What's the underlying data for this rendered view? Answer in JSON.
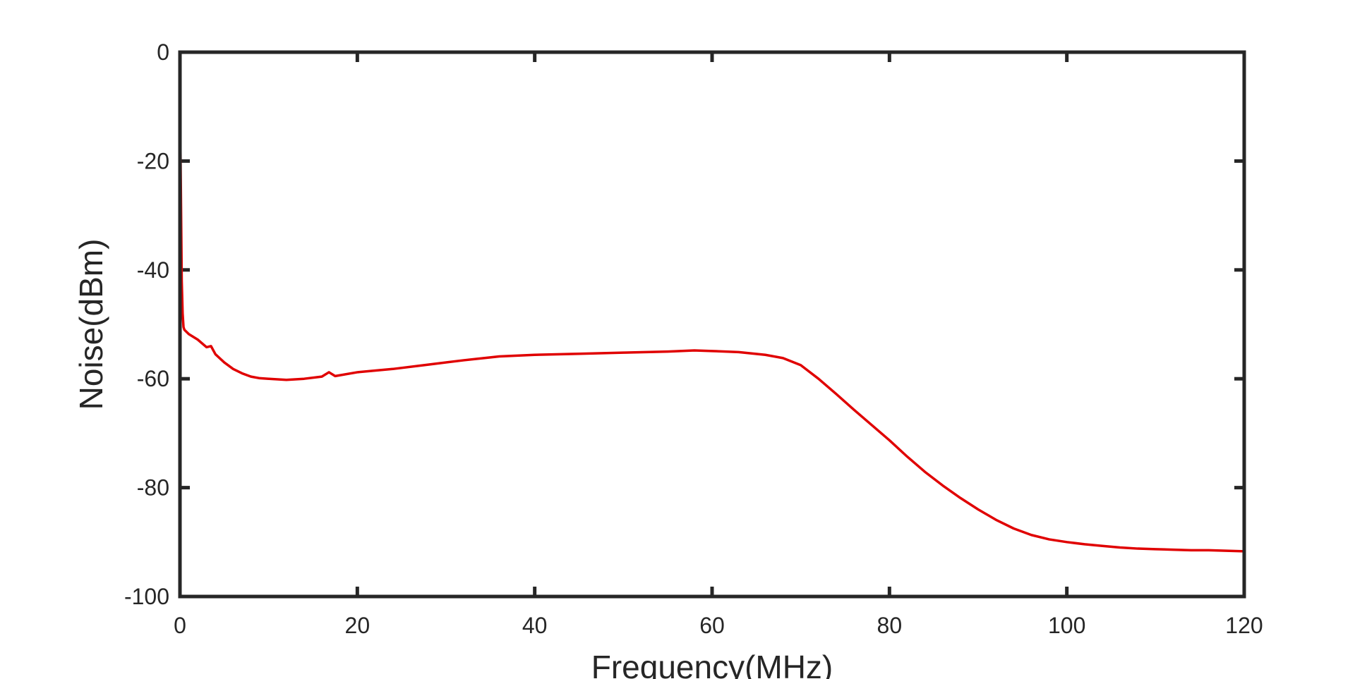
{
  "chart_data": {
    "type": "line",
    "xlabel": "Frequency(MHz)",
    "ylabel": "Noise(dBm)",
    "xlim": [
      0,
      120
    ],
    "ylim": [
      -100,
      0
    ],
    "xticks": [
      0,
      20,
      40,
      60,
      80,
      100,
      120
    ],
    "yticks": [
      0,
      -20,
      -40,
      -60,
      -80,
      -100
    ],
    "grid": false,
    "legend": "none",
    "series": [
      {
        "color": "#e00000",
        "x": [
          0,
          0.1,
          0.2,
          0.3,
          0.4,
          0.5,
          1,
          2,
          3,
          3.5,
          4,
          5,
          6,
          7,
          8,
          9,
          10,
          12,
          14,
          16,
          16.8,
          17.5,
          20,
          24,
          28,
          32,
          36,
          40,
          45,
          50,
          55,
          58,
          60,
          63,
          66,
          68,
          70,
          72,
          74,
          76,
          78,
          80,
          82,
          84,
          86,
          88,
          90,
          92,
          94,
          96,
          98,
          100,
          102,
          104,
          106,
          108,
          110,
          112,
          114,
          116,
          118,
          120
        ],
        "y": [
          -8,
          -25,
          -42,
          -48,
          -50.5,
          -51,
          -51.8,
          -52.8,
          -54.2,
          -54,
          -55.5,
          -57,
          -58.2,
          -59,
          -59.6,
          -59.9,
          -60,
          -60.2,
          -60,
          -59.6,
          -58.8,
          -59.5,
          -58.8,
          -58.2,
          -57.4,
          -56.6,
          -55.9,
          -55.6,
          -55.4,
          -55.2,
          -55,
          -54.8,
          -54.9,
          -55.1,
          -55.6,
          -56.2,
          -57.5,
          -60,
          -62.8,
          -65.7,
          -68.5,
          -71.3,
          -74.3,
          -77.1,
          -79.6,
          -81.9,
          -84,
          -85.9,
          -87.5,
          -88.7,
          -89.5,
          -90,
          -90.4,
          -90.7,
          -91,
          -91.2,
          -91.3,
          -91.4,
          -91.5,
          -91.5,
          -91.6,
          -91.7
        ]
      }
    ]
  }
}
